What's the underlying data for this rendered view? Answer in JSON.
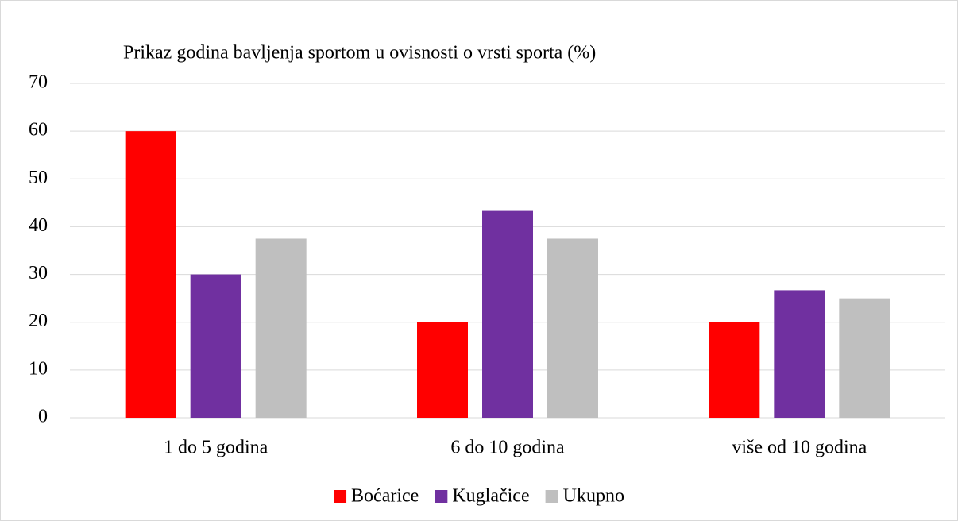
{
  "chart_data": {
    "type": "bar",
    "title": "Prikaz godina bavljenja sportom u ovisnosti o vrsti sporta (%)",
    "categories": [
      "1 do 5 godina",
      "6 do 10 godina",
      "više od 10 godina"
    ],
    "series": [
      {
        "name": "Boćarice",
        "color": "#ff0000",
        "values": [
          60,
          20,
          20
        ]
      },
      {
        "name": "Kuglačice",
        "color": "#7030a0",
        "values": [
          30,
          43.3,
          26.7
        ]
      },
      {
        "name": "Ukupno",
        "color": "#bfbfbf",
        "values": [
          37.5,
          37.5,
          25
        ]
      }
    ],
    "ylim": [
      0,
      70
    ],
    "yticks": [
      0,
      10,
      20,
      30,
      40,
      50,
      60,
      70
    ],
    "grid": true,
    "legend": "bottom"
  }
}
